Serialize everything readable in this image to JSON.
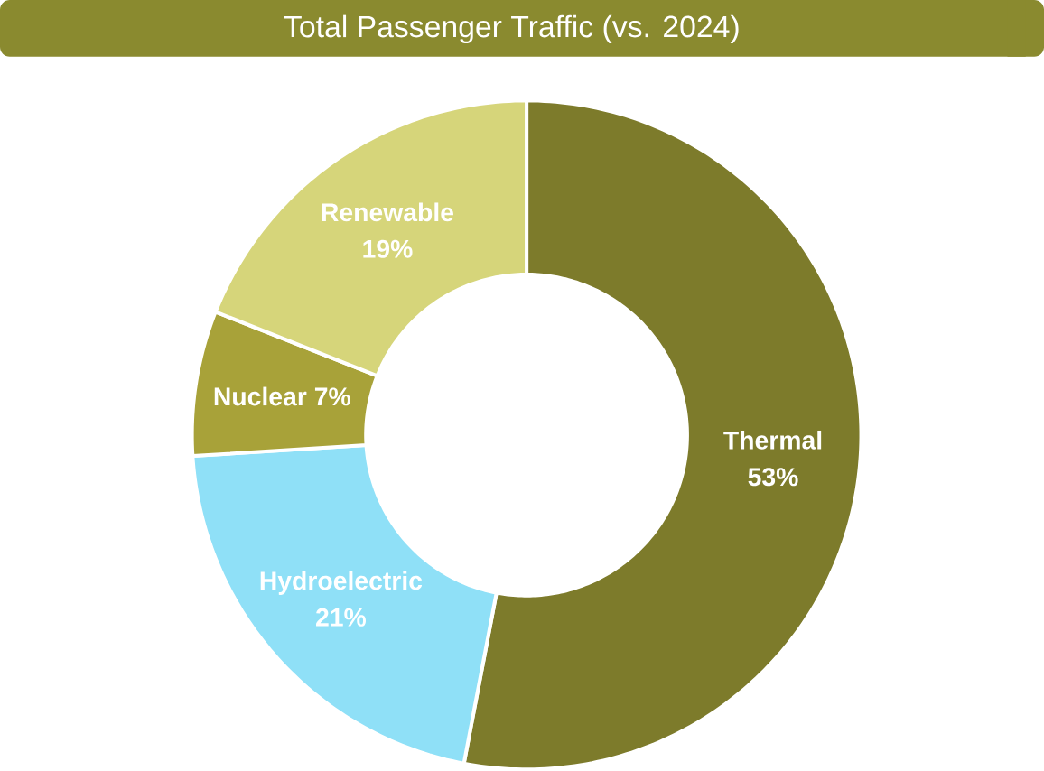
{
  "chart_data": {
    "type": "donut",
    "title": "Total Passenger Traffic (vs. 2024)",
    "categories": [
      "Thermal",
      "Hydroelectric",
      "Nuclear",
      "Renewable"
    ],
    "values": [
      53,
      21,
      7,
      19
    ],
    "value_labels": [
      "53%",
      "21%",
      "7%",
      "19%"
    ],
    "colors": [
      "#7d7b2b",
      "#8fe0f7",
      "#a8a239",
      "#d6d57a"
    ]
  }
}
